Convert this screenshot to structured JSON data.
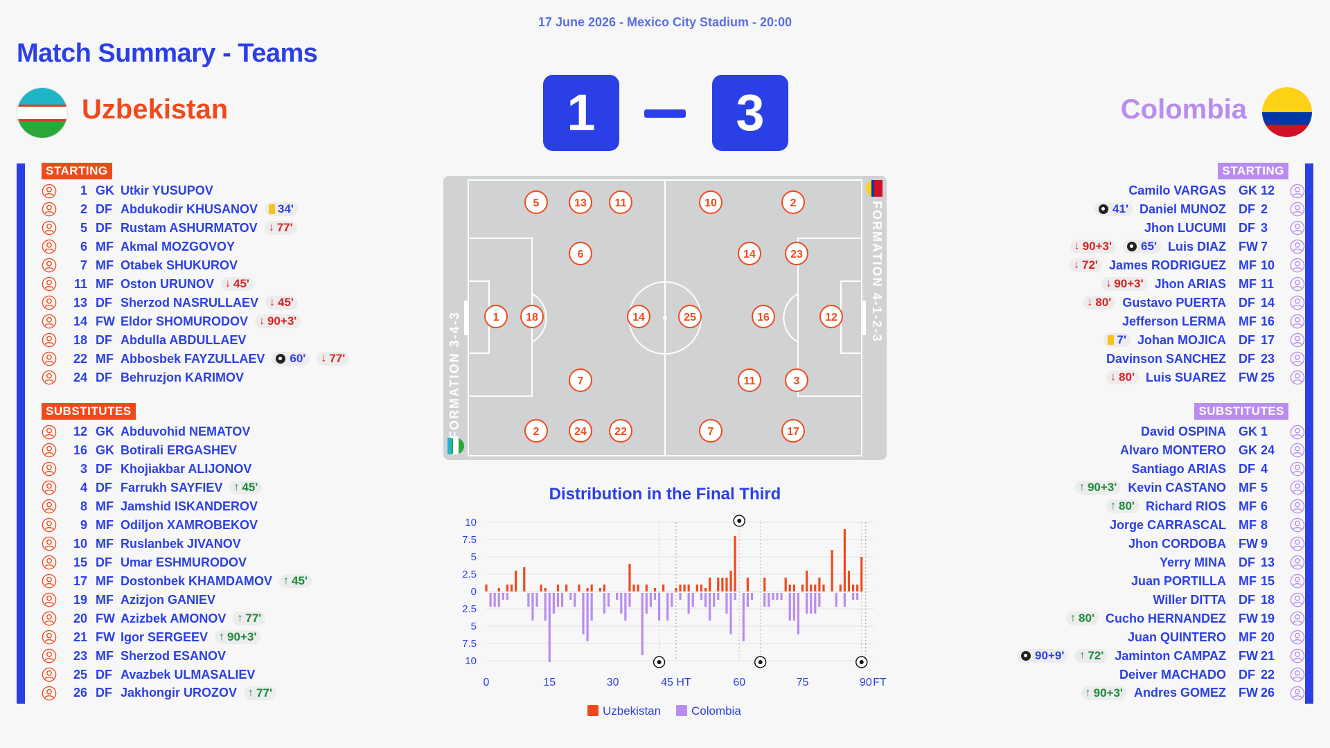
{
  "match": {
    "meta": "17 June 2026 - Mexico City Stadium - 20:00",
    "title": "Match Summary - Teams",
    "home_name": "Uzbekistan",
    "away_name": "Colombia",
    "home_score": "1",
    "away_score": "3"
  },
  "colors": {
    "accent": "#2b3fe6",
    "home": "#f04a1c",
    "away": "#b98cf0",
    "sub_in": "#1a8a3a",
    "sub_out": "#d82222"
  },
  "labels": {
    "starting": "STARTING",
    "substitutes": "SUBSTITUTES"
  },
  "home": {
    "starting": [
      {
        "num": "1",
        "pos": "GK",
        "name": "Utkir YUSUPOV",
        "events": []
      },
      {
        "num": "2",
        "pos": "DF",
        "name": "Abdukodir KHUSANOV",
        "events": [
          {
            "type": "yellow",
            "text": "34'"
          }
        ]
      },
      {
        "num": "5",
        "pos": "DF",
        "name": "Rustam ASHURMATOV",
        "events": [
          {
            "type": "out",
            "text": "77'"
          }
        ]
      },
      {
        "num": "6",
        "pos": "MF",
        "name": "Akmal MOZGOVOY",
        "events": []
      },
      {
        "num": "7",
        "pos": "MF",
        "name": "Otabek SHUKUROV",
        "events": []
      },
      {
        "num": "11",
        "pos": "MF",
        "name": "Oston URUNOV",
        "events": [
          {
            "type": "out",
            "text": "45'"
          }
        ]
      },
      {
        "num": "13",
        "pos": "DF",
        "name": "Sherzod NASRULLAEV",
        "events": [
          {
            "type": "out",
            "text": "45'"
          }
        ]
      },
      {
        "num": "14",
        "pos": "FW",
        "name": "Eldor SHOMURODOV",
        "events": [
          {
            "type": "out",
            "text": "90+3'"
          }
        ]
      },
      {
        "num": "18",
        "pos": "DF",
        "name": "Abdulla ABDULLAEV",
        "events": []
      },
      {
        "num": "22",
        "pos": "MF",
        "name": "Abbosbek FAYZULLAEV",
        "events": [
          {
            "type": "goal",
            "text": "60'"
          },
          {
            "type": "out",
            "text": "77'"
          }
        ]
      },
      {
        "num": "24",
        "pos": "DF",
        "name": "Behruzjon KARIMOV",
        "events": []
      }
    ],
    "subs": [
      {
        "num": "12",
        "pos": "GK",
        "name": "Abduvohid NEMATOV",
        "events": []
      },
      {
        "num": "16",
        "pos": "GK",
        "name": "Botirali ERGASHEV",
        "events": []
      },
      {
        "num": "3",
        "pos": "DF",
        "name": "Khojiakbar ALIJONOV",
        "events": []
      },
      {
        "num": "4",
        "pos": "DF",
        "name": "Farrukh SAYFIEV",
        "events": [
          {
            "type": "in",
            "text": "45'"
          }
        ]
      },
      {
        "num": "8",
        "pos": "MF",
        "name": "Jamshid ISKANDEROV",
        "events": []
      },
      {
        "num": "9",
        "pos": "MF",
        "name": "Odiljon XAMROBEKOV",
        "events": []
      },
      {
        "num": "10",
        "pos": "MF",
        "name": "Ruslanbek JIVANOV",
        "events": []
      },
      {
        "num": "15",
        "pos": "DF",
        "name": "Umar ESHMURODOV",
        "events": []
      },
      {
        "num": "17",
        "pos": "MF",
        "name": "Dostonbek KHAMDAMOV",
        "events": [
          {
            "type": "in",
            "text": "45'"
          }
        ]
      },
      {
        "num": "19",
        "pos": "MF",
        "name": "Azizjon GANIEV",
        "events": []
      },
      {
        "num": "20",
        "pos": "FW",
        "name": "Azizbek AMONOV",
        "events": [
          {
            "type": "in",
            "text": "77'"
          }
        ]
      },
      {
        "num": "21",
        "pos": "FW",
        "name": "Igor SERGEEV",
        "events": [
          {
            "type": "in",
            "text": "90+3'"
          }
        ]
      },
      {
        "num": "23",
        "pos": "MF",
        "name": "Sherzod ESANOV",
        "events": []
      },
      {
        "num": "25",
        "pos": "DF",
        "name": "Avazbek ULMASALIEV",
        "events": []
      },
      {
        "num": "26",
        "pos": "DF",
        "name": "Jakhongir UROZOV",
        "events": [
          {
            "type": "in",
            "text": "77'"
          }
        ]
      }
    ]
  },
  "away": {
    "starting": [
      {
        "num": "12",
        "pos": "GK",
        "name": "Camilo VARGAS",
        "events": []
      },
      {
        "num": "2",
        "pos": "DF",
        "name": "Daniel MUNOZ",
        "events": [
          {
            "type": "goal",
            "text": "41'"
          }
        ]
      },
      {
        "num": "3",
        "pos": "DF",
        "name": "Jhon LUCUMI",
        "events": []
      },
      {
        "num": "7",
        "pos": "FW",
        "name": "Luis DIAZ",
        "events": [
          {
            "type": "out",
            "text": "90+3'"
          },
          {
            "type": "goal",
            "text": "65'"
          }
        ]
      },
      {
        "num": "10",
        "pos": "MF",
        "name": "James RODRIGUEZ",
        "events": [
          {
            "type": "out",
            "text": "72'"
          }
        ]
      },
      {
        "num": "11",
        "pos": "MF",
        "name": "Jhon ARIAS",
        "events": [
          {
            "type": "out",
            "text": "90+3'"
          }
        ]
      },
      {
        "num": "14",
        "pos": "DF",
        "name": "Gustavo PUERTA",
        "events": [
          {
            "type": "out",
            "text": "80'"
          }
        ]
      },
      {
        "num": "16",
        "pos": "MF",
        "name": "Jefferson LERMA",
        "events": []
      },
      {
        "num": "17",
        "pos": "DF",
        "name": "Johan MOJICA",
        "events": [
          {
            "type": "yellow",
            "text": "7'"
          }
        ]
      },
      {
        "num": "23",
        "pos": "DF",
        "name": "Davinson SANCHEZ",
        "events": []
      },
      {
        "num": "25",
        "pos": "FW",
        "name": "Luis SUAREZ",
        "events": [
          {
            "type": "out",
            "text": "80'"
          }
        ]
      }
    ],
    "subs": [
      {
        "num": "1",
        "pos": "GK",
        "name": "David OSPINA",
        "events": []
      },
      {
        "num": "24",
        "pos": "GK",
        "name": "Alvaro MONTERO",
        "events": []
      },
      {
        "num": "4",
        "pos": "DF",
        "name": "Santiago ARIAS",
        "events": []
      },
      {
        "num": "5",
        "pos": "MF",
        "name": "Kevin CASTANO",
        "events": [
          {
            "type": "in",
            "text": "90+3'"
          }
        ]
      },
      {
        "num": "6",
        "pos": "MF",
        "name": "Richard RIOS",
        "events": [
          {
            "type": "in",
            "text": "80'"
          }
        ]
      },
      {
        "num": "8",
        "pos": "MF",
        "name": "Jorge CARRASCAL",
        "events": []
      },
      {
        "num": "9",
        "pos": "FW",
        "name": "Jhon CORDOBA",
        "events": []
      },
      {
        "num": "13",
        "pos": "DF",
        "name": "Yerry MINA",
        "events": []
      },
      {
        "num": "15",
        "pos": "MF",
        "name": "Juan PORTILLA",
        "events": []
      },
      {
        "num": "18",
        "pos": "DF",
        "name": "Willer DITTA",
        "events": []
      },
      {
        "num": "19",
        "pos": "FW",
        "name": "Cucho HERNANDEZ",
        "events": [
          {
            "type": "in",
            "text": "80'"
          }
        ]
      },
      {
        "num": "20",
        "pos": "MF",
        "name": "Juan QUINTERO",
        "events": []
      },
      {
        "num": "21",
        "pos": "FW",
        "name": "Jaminton CAMPAZ",
        "events": [
          {
            "type": "goal",
            "text": "90+9'"
          },
          {
            "type": "in",
            "text": "72'"
          }
        ]
      },
      {
        "num": "22",
        "pos": "DF",
        "name": "Deiver MACHADO",
        "events": []
      },
      {
        "num": "26",
        "pos": "FW",
        "name": "Andres GOMEZ",
        "events": [
          {
            "type": "in",
            "text": "90+3'"
          }
        ]
      }
    ]
  },
  "pitch": {
    "home_formation": "FORMATION 3-4-3",
    "away_formation": "FORMATION 4-1-2-3",
    "home_players": [
      "5",
      "13",
      "11",
      "6",
      "1",
      "18",
      "14",
      "7",
      "2",
      "24",
      "22"
    ],
    "away_players": [
      "10",
      "2",
      "14",
      "23",
      "25",
      "16",
      "12",
      "11",
      "3",
      "7",
      "17"
    ]
  },
  "chart_data": {
    "type": "bar",
    "title": "Distribution in the Final Third",
    "legend": [
      "Uzbekistan",
      "Colombia"
    ],
    "legend_position": "bottom",
    "x_tick_labels": [
      "0",
      "15",
      "30",
      "45 HT",
      "60",
      "75",
      "90",
      "FT"
    ],
    "y_tick_labels": [
      "10",
      "7.5",
      "5",
      "2.5",
      "0",
      "2.5",
      "5",
      "7.5",
      "10"
    ],
    "ylim": [
      -10,
      10
    ],
    "series": [
      {
        "name": "Uzbekistan",
        "color": "#f04a1c",
        "x": [
          0,
          3,
          5,
          6,
          7,
          9,
          13,
          14,
          17,
          19,
          22,
          24,
          25,
          27,
          28,
          34,
          35,
          36,
          38,
          40,
          42,
          45,
          46,
          47,
          48,
          50,
          51,
          52,
          53,
          55,
          56,
          57,
          58,
          59,
          62,
          66,
          71,
          72,
          73,
          75,
          76,
          77,
          78,
          79,
          80,
          82,
          84,
          85,
          86,
          87,
          88,
          89
        ],
        "values": [
          1,
          0.5,
          1,
          1,
          3,
          3.5,
          1,
          0.5,
          1,
          1,
          1,
          0.5,
          1,
          0.5,
          1,
          4,
          1,
          1,
          1,
          0.5,
          1,
          0.5,
          1,
          1,
          1,
          1,
          1,
          0.5,
          2,
          2,
          2,
          2,
          3,
          8,
          2,
          2,
          2,
          1,
          1,
          1,
          3,
          1,
          1,
          2,
          1,
          6,
          1,
          9,
          3,
          1,
          1,
          5
        ]
      },
      {
        "name": "Colombia",
        "color": "#b98cf0",
        "x": [
          1,
          2,
          3,
          4,
          5,
          10,
          11,
          12,
          14,
          15,
          16,
          17,
          18,
          20,
          21,
          23,
          24,
          25,
          28,
          29,
          31,
          32,
          33,
          34,
          37,
          38,
          39,
          40,
          41,
          43,
          44,
          46,
          48,
          49,
          51,
          52,
          53,
          54,
          55,
          57,
          58,
          59,
          61,
          62,
          63,
          66,
          67,
          68,
          69,
          70,
          72,
          73,
          74,
          76,
          77,
          78,
          79,
          83,
          85,
          87,
          88
        ],
        "values": [
          2,
          2,
          2,
          1,
          1,
          2,
          4,
          2,
          4,
          10,
          3,
          2,
          2,
          1,
          2,
          6,
          7,
          4,
          3,
          2,
          1,
          3,
          4,
          2,
          9,
          3,
          2,
          1,
          4,
          4,
          2,
          1,
          3,
          2,
          1,
          2,
          4,
          2,
          1,
          3,
          6,
          1,
          7,
          2,
          1,
          2,
          2,
          1,
          1,
          1,
          4,
          4,
          6,
          3,
          3,
          3,
          2,
          2,
          2,
          1,
          1
        ]
      }
    ],
    "goal_markers": [
      {
        "side": "top",
        "x": 60
      },
      {
        "side": "bottom",
        "x": 41
      },
      {
        "side": "bottom",
        "x": 65
      },
      {
        "side": "bottom",
        "x": 89
      }
    ]
  }
}
